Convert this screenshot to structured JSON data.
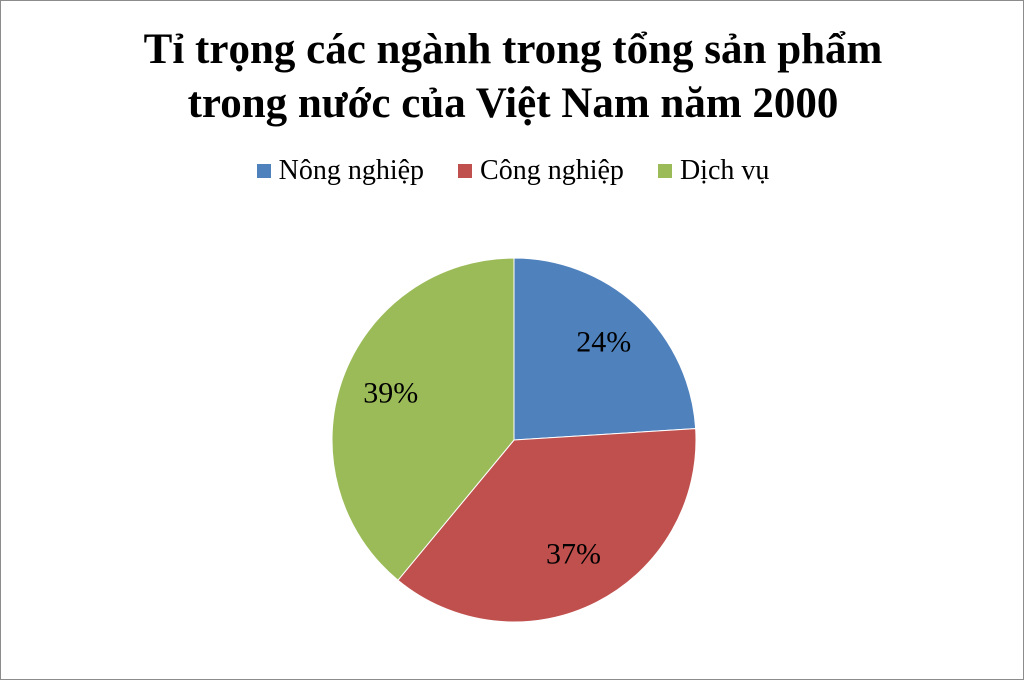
{
  "chart_data": {
    "type": "pie",
    "title": "Tỉ trọng các ngành trong tổng sản phẩm trong nước của Việt Nam năm 2000",
    "categories": [
      "Nông nghiệp",
      "Công nghiệp",
      "Dịch vụ"
    ],
    "values": [
      24,
      37,
      39
    ],
    "value_labels": [
      "24%",
      "37%",
      "39%"
    ],
    "colors": [
      "#4f81bd",
      "#c0504d",
      "#9bbb59"
    ],
    "legend": "top"
  }
}
